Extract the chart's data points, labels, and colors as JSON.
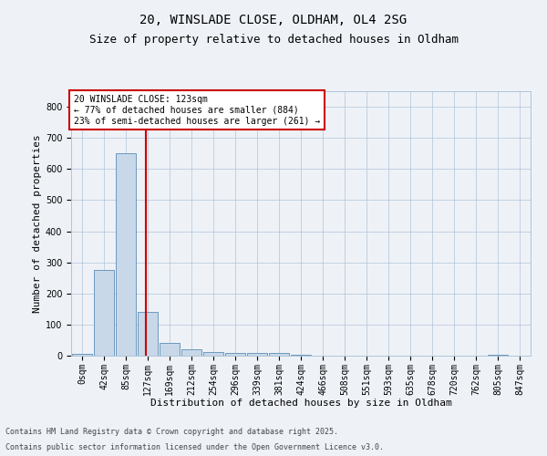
{
  "title_line1": "20, WINSLADE CLOSE, OLDHAM, OL4 2SG",
  "title_line2": "Size of property relative to detached houses in Oldham",
  "xlabel": "Distribution of detached houses by size in Oldham",
  "ylabel": "Number of detached properties",
  "bar_labels": [
    "0sqm",
    "42sqm",
    "85sqm",
    "127sqm",
    "169sqm",
    "212sqm",
    "254sqm",
    "296sqm",
    "339sqm",
    "381sqm",
    "424sqm",
    "466sqm",
    "508sqm",
    "551sqm",
    "593sqm",
    "635sqm",
    "678sqm",
    "720sqm",
    "762sqm",
    "805sqm",
    "847sqm"
  ],
  "bar_values": [
    7,
    275,
    650,
    140,
    40,
    20,
    12,
    10,
    10,
    8,
    3,
    0,
    0,
    0,
    0,
    0,
    0,
    0,
    0,
    2,
    0
  ],
  "bar_color": "#c8d8e8",
  "bar_edge_color": "#5b8db8",
  "vline_x": 2.93,
  "vline_color": "#cc0000",
  "ylim": [
    0,
    850
  ],
  "yticks": [
    0,
    100,
    200,
    300,
    400,
    500,
    600,
    700,
    800
  ],
  "annotation_text": "20 WINSLADE CLOSE: 123sqm\n← 77% of detached houses are smaller (884)\n23% of semi-detached houses are larger (261) →",
  "annotation_box_color": "#ffffff",
  "annotation_box_edge": "#cc0000",
  "footer_line1": "Contains HM Land Registry data © Crown copyright and database right 2025.",
  "footer_line2": "Contains public sector information licensed under the Open Government Licence v3.0.",
  "background_color": "#eef2f7",
  "plot_bg_color": "#eef2f7",
  "grid_color": "#b0c4d8",
  "title_fontsize": 10,
  "subtitle_fontsize": 9,
  "axis_label_fontsize": 8,
  "tick_fontsize": 7,
  "annotation_fontsize": 7,
  "footer_fontsize": 6
}
